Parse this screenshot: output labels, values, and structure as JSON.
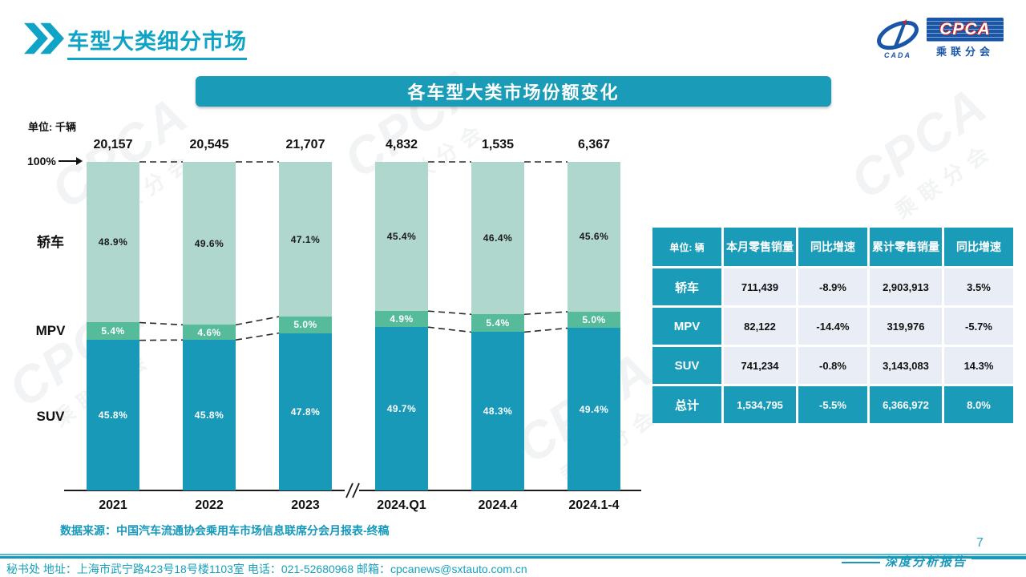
{
  "page": {
    "title": "车型大类细分市场",
    "page_number": "7",
    "report_tag": "深度分析报告"
  },
  "logo": {
    "cpca": "CPCA",
    "sub": "乘联分会",
    "cada": "CADA"
  },
  "banner": {
    "title": "各车型大类市场份额变化"
  },
  "chart_data": {
    "type": "bar",
    "stacked": true,
    "unit_label": "单位: 千辆",
    "axis_100_label": "100%",
    "categories": [
      "2021",
      "2022",
      "2023",
      "2024.Q1",
      "2024.4",
      "2024.1-4"
    ],
    "totals": [
      "20,157",
      "20,545",
      "21,707",
      "4,832",
      "1,535",
      "6,367"
    ],
    "series": [
      {
        "name": "轿车",
        "values": [
          48.9,
          49.6,
          47.1,
          45.4,
          46.4,
          45.6
        ],
        "color": "#AFD7CE",
        "label_color": "#1a1a1a"
      },
      {
        "name": "MPV",
        "values": [
          5.4,
          4.6,
          5.0,
          4.9,
          5.4,
          5.0
        ],
        "color": "#56BB9B",
        "label_color": "#ffffff"
      },
      {
        "name": "SUV",
        "values": [
          45.8,
          45.8,
          47.8,
          49.7,
          48.3,
          49.4
        ],
        "color": "#1899B8",
        "label_color": "#ffffff"
      }
    ],
    "ylim": [
      0,
      100
    ],
    "legend_position": "left",
    "grid": false,
    "connector_pairs": [
      [
        0,
        1
      ],
      [
        1,
        2
      ],
      [
        3,
        4
      ],
      [
        4,
        5
      ]
    ],
    "axis_break_after_index": 2
  },
  "table": {
    "unit_header": "单位: 辆",
    "columns": [
      "本月零售销量",
      "同比增速",
      "累计零售销量",
      "同比增速"
    ],
    "rows": [
      {
        "label": "轿车",
        "values": [
          "711,439",
          "-8.9%",
          "2,903,913",
          "3.5%"
        ],
        "total": false
      },
      {
        "label": "MPV",
        "values": [
          "82,122",
          "-14.4%",
          "319,976",
          "-5.7%"
        ],
        "total": false
      },
      {
        "label": "SUV",
        "values": [
          "741,234",
          "-0.8%",
          "3,143,083",
          "14.3%"
        ],
        "total": false
      },
      {
        "label": "总计",
        "values": [
          "1,534,795",
          "-5.5%",
          "6,366,972",
          "8.0%"
        ],
        "total": true
      }
    ]
  },
  "source": "数据来源：中国汽车流通协会乘用车市场信息联席分会月报表-终稿",
  "footer": "秘书处   地址：上海市武宁路423号18号楼1103室   电话：021-52680968    邮箱：cpcanews@sxtauto.com.cn",
  "watermark": {
    "big": "CPCA",
    "small": "乘联分会"
  },
  "colors": {
    "teal": "#1A9CB8",
    "title": "#0FA3C6",
    "sedan": "#AFD7CE",
    "mpv": "#56BB9B",
    "suv": "#1899B8"
  }
}
